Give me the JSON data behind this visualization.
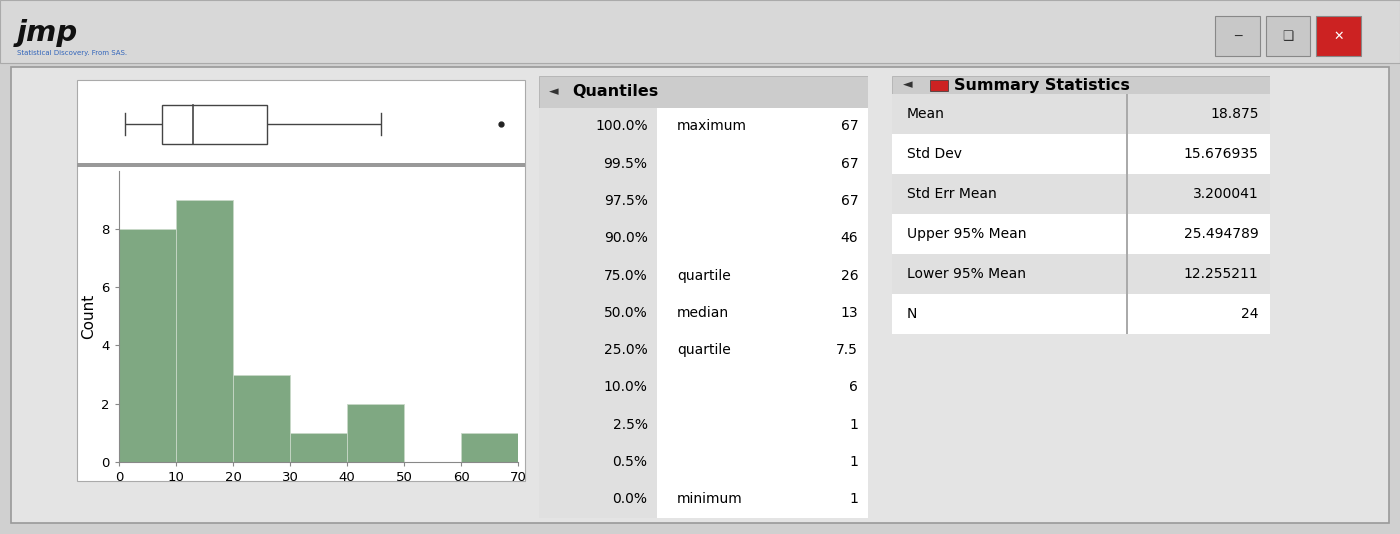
{
  "hist_bins": [
    0,
    10,
    20,
    30,
    40,
    50,
    60,
    70
  ],
  "hist_counts": [
    8,
    9,
    3,
    1,
    2,
    0,
    1
  ],
  "hist_color": "#7fa882",
  "hist_edge_color": "#c8d8c8",
  "boxplot_q1": 7.5,
  "boxplot_median": 13,
  "boxplot_q3": 26,
  "boxplot_min": 1,
  "boxplot_max": 46,
  "boxplot_outlier": 67,
  "bg_outer": "#d0d0d0",
  "bg_inner": "#e4e4e4",
  "bg_title": "#d8d8d8",
  "bg_plot": "#ffffff",
  "bg_table_white": "#ffffff",
  "bg_table_gray": "#e0e0e0",
  "bg_table_header": "#cccccc",
  "quantiles_pct": [
    "100.0%",
    "99.5%",
    "97.5%",
    "90.0%",
    "75.0%",
    "50.0%",
    "25.0%",
    "10.0%",
    "2.5%",
    "0.5%",
    "0.0%"
  ],
  "quantiles_label": [
    "maximum",
    "",
    "",
    "",
    "quartile",
    "median",
    "quartile",
    "",
    "",
    "",
    "minimum"
  ],
  "quantiles_value": [
    "67",
    "67",
    "67",
    "46",
    "26",
    "13",
    "7.5",
    "6",
    "1",
    "1",
    "1"
  ],
  "summary_label": [
    "Mean",
    "Std Dev",
    "Std Err Mean",
    "Upper 95% Mean",
    "Lower 95% Mean",
    "N"
  ],
  "summary_value": [
    "18.875",
    "15.676935",
    "3.200041",
    "25.494789",
    "12.255211",
    "24"
  ],
  "title_quantiles": "Quantiles",
  "title_summary": "Summary Statistics",
  "ylabel": "Count",
  "xlim": [
    0,
    70
  ],
  "ylim": [
    0,
    10
  ],
  "yticks": [
    0,
    2,
    4,
    6,
    8
  ],
  "xticks": [
    0,
    10,
    20,
    30,
    40,
    50,
    60,
    70
  ],
  "font_size_table": 10,
  "font_size_header": 11.5
}
